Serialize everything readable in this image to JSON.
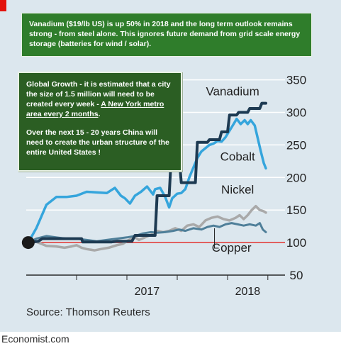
{
  "chart_data": {
    "type": "line",
    "title": "",
    "xlabel": "",
    "ylabel": "",
    "x_ticks": [
      "2017",
      "2018"
    ],
    "y_ticks": [
      50,
      100,
      150,
      200,
      250,
      300,
      350
    ],
    "ylim": [
      50,
      355
    ],
    "xlim": [
      2016.0,
      2018.5
    ],
    "baseline": 100,
    "start_point": {
      "x": 2016.02,
      "y": 100
    },
    "series": [
      {
        "name": "Vanadium",
        "color": "#1d3a52",
        "points": [
          [
            2016.02,
            100
          ],
          [
            2016.12,
            102
          ],
          [
            2016.16,
            106
          ],
          [
            2016.55,
            106
          ],
          [
            2016.56,
            101
          ],
          [
            2016.85,
            101
          ],
          [
            2016.9,
            102
          ],
          [
            2017.05,
            102
          ],
          [
            2017.08,
            111
          ],
          [
            2017.28,
            111
          ],
          [
            2017.3,
            172
          ],
          [
            2017.42,
            172
          ],
          [
            2017.44,
            230
          ],
          [
            2017.52,
            230
          ],
          [
            2017.54,
            192
          ],
          [
            2017.68,
            192
          ],
          [
            2017.7,
            254
          ],
          [
            2017.8,
            254
          ],
          [
            2017.82,
            258
          ],
          [
            2017.92,
            258
          ],
          [
            2017.94,
            270
          ],
          [
            2018.0,
            270
          ],
          [
            2018.02,
            296
          ],
          [
            2018.09,
            296
          ],
          [
            2018.11,
            300
          ],
          [
            2018.2,
            300
          ],
          [
            2018.22,
            306
          ],
          [
            2018.32,
            306
          ],
          [
            2018.34,
            314
          ],
          [
            2018.38,
            314
          ]
        ]
      },
      {
        "name": "Cobalt",
        "color": "#35a5dc",
        "points": [
          [
            2016.02,
            100
          ],
          [
            2016.1,
            122
          ],
          [
            2016.2,
            158
          ],
          [
            2016.3,
            170
          ],
          [
            2016.4,
            170
          ],
          [
            2016.5,
            172
          ],
          [
            2016.6,
            178
          ],
          [
            2016.7,
            177
          ],
          [
            2016.8,
            176
          ],
          [
            2016.88,
            184
          ],
          [
            2016.94,
            172
          ],
          [
            2016.98,
            168
          ],
          [
            2017.03,
            160
          ],
          [
            2017.08,
            172
          ],
          [
            2017.14,
            178
          ],
          [
            2017.2,
            186
          ],
          [
            2017.26,
            174
          ],
          [
            2017.28,
            182
          ],
          [
            2017.33,
            184
          ],
          [
            2017.38,
            170
          ],
          [
            2017.42,
            154
          ],
          [
            2017.45,
            168
          ],
          [
            2017.5,
            175
          ],
          [
            2017.54,
            176
          ],
          [
            2017.58,
            182
          ],
          [
            2017.62,
            200
          ],
          [
            2017.66,
            215
          ],
          [
            2017.7,
            230
          ],
          [
            2017.74,
            240
          ],
          [
            2017.78,
            245
          ],
          [
            2017.82,
            250
          ],
          [
            2017.86,
            252
          ],
          [
            2017.9,
            256
          ],
          [
            2017.94,
            255
          ],
          [
            2017.98,
            262
          ],
          [
            2018.02,
            272
          ],
          [
            2018.06,
            282
          ],
          [
            2018.09,
            290
          ],
          [
            2018.13,
            282
          ],
          [
            2018.17,
            288
          ],
          [
            2018.2,
            282
          ],
          [
            2018.23,
            288
          ],
          [
            2018.27,
            280
          ],
          [
            2018.3,
            260
          ],
          [
            2018.33,
            240
          ],
          [
            2018.36,
            222
          ],
          [
            2018.38,
            214
          ]
        ]
      },
      {
        "name": "Nickel",
        "color": "#a9a9a9",
        "points": [
          [
            2016.05,
            104
          ],
          [
            2016.15,
            98
          ],
          [
            2016.2,
            95
          ],
          [
            2016.3,
            94
          ],
          [
            2016.38,
            92
          ],
          [
            2016.45,
            94
          ],
          [
            2016.5,
            96
          ],
          [
            2016.55,
            92
          ],
          [
            2016.6,
            90
          ],
          [
            2016.68,
            88
          ],
          [
            2016.74,
            90
          ],
          [
            2016.82,
            92
          ],
          [
            2016.9,
            96
          ],
          [
            2016.96,
            98
          ],
          [
            2017.02,
            104
          ],
          [
            2017.08,
            108
          ],
          [
            2017.12,
            104
          ],
          [
            2017.18,
            108
          ],
          [
            2017.24,
            112
          ],
          [
            2017.3,
            118
          ],
          [
            2017.36,
            116
          ],
          [
            2017.42,
            118
          ],
          [
            2017.48,
            122
          ],
          [
            2017.54,
            118
          ],
          [
            2017.6,
            126
          ],
          [
            2017.66,
            128
          ],
          [
            2017.72,
            124
          ],
          [
            2017.78,
            134
          ],
          [
            2017.84,
            138
          ],
          [
            2017.9,
            140
          ],
          [
            2017.96,
            136
          ],
          [
            2018.02,
            134
          ],
          [
            2018.08,
            138
          ],
          [
            2018.12,
            142
          ],
          [
            2018.16,
            136
          ],
          [
            2018.2,
            142
          ],
          [
            2018.24,
            150
          ],
          [
            2018.28,
            156
          ],
          [
            2018.32,
            150
          ],
          [
            2018.36,
            148
          ],
          [
            2018.38,
            146
          ]
        ]
      },
      {
        "name": "Copper",
        "color": "#4f7f99",
        "points": [
          [
            2016.02,
            100
          ],
          [
            2016.1,
            106
          ],
          [
            2016.2,
            110
          ],
          [
            2016.3,
            108
          ],
          [
            2016.4,
            106
          ],
          [
            2016.5,
            106
          ],
          [
            2016.6,
            104
          ],
          [
            2016.7,
            102
          ],
          [
            2016.8,
            104
          ],
          [
            2016.9,
            106
          ],
          [
            2017.0,
            108
          ],
          [
            2017.08,
            110
          ],
          [
            2017.16,
            114
          ],
          [
            2017.24,
            116
          ],
          [
            2017.3,
            115
          ],
          [
            2017.38,
            116
          ],
          [
            2017.46,
            118
          ],
          [
            2017.52,
            120
          ],
          [
            2017.58,
            118
          ],
          [
            2017.66,
            122
          ],
          [
            2017.74,
            120
          ],
          [
            2017.8,
            124
          ],
          [
            2017.86,
            126
          ],
          [
            2017.92,
            124
          ],
          [
            2017.98,
            128
          ],
          [
            2018.04,
            130
          ],
          [
            2018.1,
            128
          ],
          [
            2018.16,
            126
          ],
          [
            2018.22,
            128
          ],
          [
            2018.28,
            126
          ],
          [
            2018.32,
            130
          ],
          [
            2018.35,
            120
          ],
          [
            2018.38,
            116
          ]
        ]
      }
    ]
  },
  "annotations": {
    "top": "Vanadium ($19/lb US) is up 50% in 2018 and the long term outlook remains strong - from steel alone. This ignores future demand from grid scale energy storage (batteries for wind / solar).",
    "mid_p1_before": "Global Growth - it is estimated that a city the size of 1.5 million will need to be created every week - ",
    "mid_p1_link": "A New York metro area every 2 months",
    "mid_p1_after": ".",
    "mid_p2": "Over the next 15 - 20 years China will need to create the urban structure of the entire United States !"
  },
  "source": "Source: Thomson Reuters",
  "footer": "Economist.com",
  "colors": {
    "background": "#dce7ee",
    "baseline": "#e3120b",
    "callout": "#2f7d2b",
    "brand_red": "#e3120b"
  }
}
